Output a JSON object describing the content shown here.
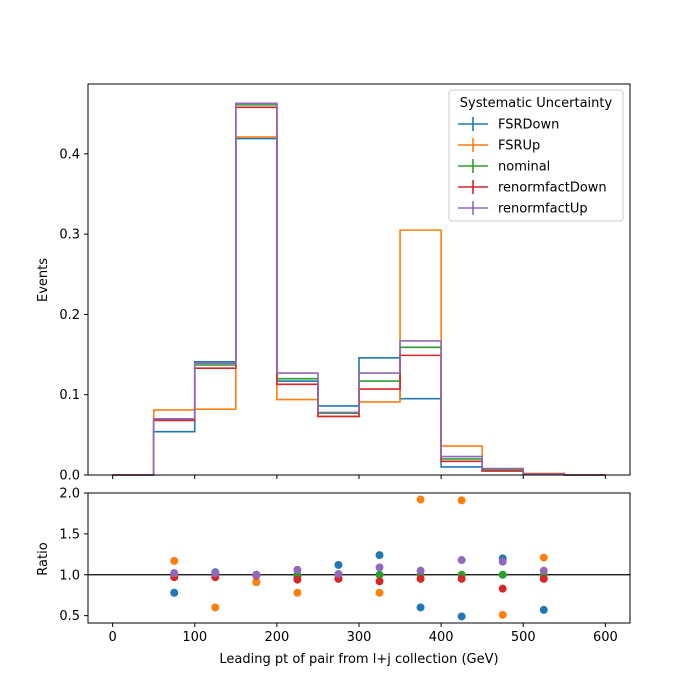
{
  "chart_data": [
    {
      "type": "line",
      "drawstyle": "steps",
      "ylabel": "Events",
      "xlim": [
        -30,
        630
      ],
      "ylim": [
        0,
        0.487
      ],
      "bin_edges": [
        0,
        50,
        100,
        150,
        200,
        250,
        300,
        350,
        400,
        450,
        500,
        550,
        600
      ],
      "xticks": [
        0,
        100,
        200,
        300,
        400,
        500,
        600
      ],
      "yticks": [
        0.0,
        0.1,
        0.2,
        0.3,
        0.4
      ],
      "ytick_labels": [
        "0.0",
        "0.1",
        "0.2",
        "0.3",
        "0.4"
      ],
      "legend": {
        "title": "Systematic Uncertainty",
        "placement": "top-right"
      },
      "series": [
        {
          "name": "FSRDown",
          "color": "#1f77b4",
          "values": [
            0.0,
            0.054,
            0.141,
            0.419,
            0.117,
            0.086,
            0.146,
            0.095,
            0.01,
            0.005,
            0.001,
            0.0
          ]
        },
        {
          "name": "FSRUp",
          "color": "#ff7f0e",
          "values": [
            0.0,
            0.081,
            0.082,
            0.421,
            0.094,
            0.073,
            0.091,
            0.305,
            0.036,
            0.007,
            0.002,
            0.0
          ]
        },
        {
          "name": "nominal",
          "color": "#2ca02c",
          "values": [
            0.0,
            0.069,
            0.137,
            0.461,
            0.12,
            0.077,
            0.117,
            0.159,
            0.02,
            0.006,
            0.001,
            0.0
          ]
        },
        {
          "name": "renormfactDown",
          "color": "#d62728",
          "values": [
            0.0,
            0.068,
            0.133,
            0.458,
            0.113,
            0.073,
            0.107,
            0.149,
            0.017,
            0.005,
            0.001,
            0.0
          ]
        },
        {
          "name": "renormfactUp",
          "color": "#9467bd",
          "values": [
            0.0,
            0.07,
            0.139,
            0.463,
            0.127,
            0.078,
            0.127,
            0.167,
            0.023,
            0.008,
            0.001,
            0.0
          ]
        }
      ]
    },
    {
      "type": "scatter",
      "xlabel": "Leading pt of pair from l+j collection (GeV)",
      "ylabel": "Ratio",
      "xlim": [
        -30,
        630
      ],
      "ylim": [
        0.41,
        2.0
      ],
      "xticks": [
        0,
        100,
        200,
        300,
        400,
        500,
        600
      ],
      "xtick_labels": [
        "0",
        "100",
        "200",
        "300",
        "400",
        "500",
        "600"
      ],
      "yticks": [
        0.5,
        1.0,
        1.5,
        2.0
      ],
      "ytick_labels": [
        "0.5",
        "1.0",
        "1.5",
        "2.0"
      ],
      "reference_line": 1.0,
      "x": [
        75,
        125,
        175,
        225,
        275,
        325,
        375,
        425,
        475,
        525
      ],
      "series": [
        {
          "name": "FSRDown",
          "color": "#1f77b4",
          "values": [
            0.78,
            1.03,
            0.91,
            0.98,
            1.12,
            1.24,
            0.6,
            0.49,
            1.2,
            0.57
          ]
        },
        {
          "name": "FSRUp",
          "color": "#ff7f0e",
          "values": [
            1.17,
            0.6,
            0.91,
            0.78,
            0.95,
            0.78,
            1.92,
            1.91,
            0.51,
            1.21
          ]
        },
        {
          "name": "nominal",
          "color": "#2ca02c",
          "values": [
            1.0,
            1.0,
            1.0,
            1.0,
            1.0,
            1.0,
            1.0,
            1.0,
            1.0,
            1.0
          ]
        },
        {
          "name": "renormfactDown",
          "color": "#d62728",
          "values": [
            0.97,
            0.97,
            0.99,
            0.94,
            0.95,
            0.92,
            0.95,
            0.95,
            0.83,
            0.95
          ]
        },
        {
          "name": "renormfactUp",
          "color": "#9467bd",
          "values": [
            1.02,
            1.02,
            1.0,
            1.06,
            1.01,
            1.09,
            1.05,
            1.18,
            1.16,
            1.05
          ]
        }
      ]
    }
  ]
}
